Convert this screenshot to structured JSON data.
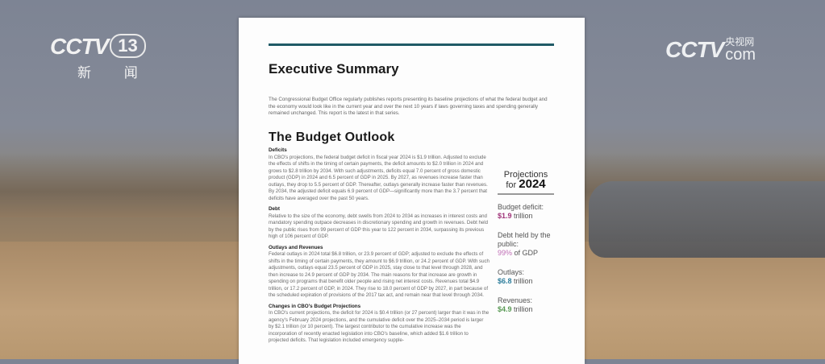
{
  "broadcast": {
    "channel_logo": "CCTV 13",
    "channel_sub": "新 闻",
    "site_logo": "CCTV",
    "site_cn": "央视网",
    "site_com": "com"
  },
  "document": {
    "title": "Executive Summary",
    "intro": "The Congressional Budget Office regularly publishes reports presenting its baseline projections of what the federal budget and the economy would look like in the current year and over the next 10 years if laws governing taxes and spending generally remained unchanged. This report is the latest in that series.",
    "section_title": "The Budget Outlook",
    "sections": [
      {
        "heading": "Deficits",
        "text": "In CBO's projections, the federal budget deficit in fiscal year 2024 is $1.9 trillion. Adjusted to exclude the effects of shifts in the timing of certain payments, the deficit amounts to $2.0 trillion in 2024 and grows to $2.8 trillion by 2034. With such adjustments, deficits equal 7.0 percent of gross domestic product (GDP) in 2024 and 6.5 percent of GDP in 2025. By 2027, as revenues increase faster than outlays, they drop to 5.5 percent of GDP. Thereafter, outlays generally increase faster than revenues. By 2034, the adjusted deficit equals 6.9 percent of GDP—significantly more than the 3.7 percent that deficits have averaged over the past 50 years."
      },
      {
        "heading": "Debt",
        "text": "Relative to the size of the economy, debt swells from 2024 to 2034 as increases in interest costs and mandatory spending outpace decreases in discretionary spending and growth in revenues. Debt held by the public rises from 99 percent of GDP this year to 122 percent in 2034, surpassing its previous high of 106 percent of GDP."
      },
      {
        "heading": "Outlays and Revenues",
        "text": "Federal outlays in 2024 total $6.8 trillion, or 23.9 percent of GDP; adjusted to exclude the effects of shifts in the timing of certain payments, they amount to $6.9 trillion, or 24.2 percent of GDP. With such adjustments, outlays equal 23.5 percent of GDP in 2025, stay close to that level through 2028, and then increase to 24.9 percent of GDP by 2034. The main reasons for that increase are growth in spending on programs that benefit older people and rising net interest costs. Revenues total $4.9 trillion, or 17.2 percent of GDP, in 2024. They rise to 18.0 percent of GDP by 2027, in part because of the scheduled expiration of provisions of the 2017 tax act, and remain near that level through 2034."
      },
      {
        "heading": "Changes in CBO's Budget Projections",
        "text": "In CBO's current projections, the deficit for 2024 is $0.4 trillion (or 27 percent) larger than it was in the agency's February 2024 projections, and the cumulative deficit over the 2025–2034 period is larger by $2.1 trillion (or 10 percent). The largest contributor to the cumulative increase was the incorporation of recently enacted legislation into CBO's baseline, which added $1.6 trillion to projected deficits. That legislation included emergency supple-"
      }
    ],
    "sidebar": {
      "heading_prefix": "Projections",
      "heading_for": "for",
      "heading_year": "2024",
      "items": [
        {
          "label": "Budget deficit:",
          "value": "$1.9",
          "unit": "trillion",
          "color": "#a0357a"
        },
        {
          "label": "Debt held by the public:",
          "value": "99%",
          "unit": "of GDP",
          "color": "#c06fb6"
        },
        {
          "label": "Outlays:",
          "value": "$6.8",
          "unit": "trillion",
          "color": "#2e7e9c"
        },
        {
          "label": "Revenues:",
          "value": "$4.9",
          "unit": "trillion",
          "color": "#5a9a55"
        }
      ]
    }
  }
}
